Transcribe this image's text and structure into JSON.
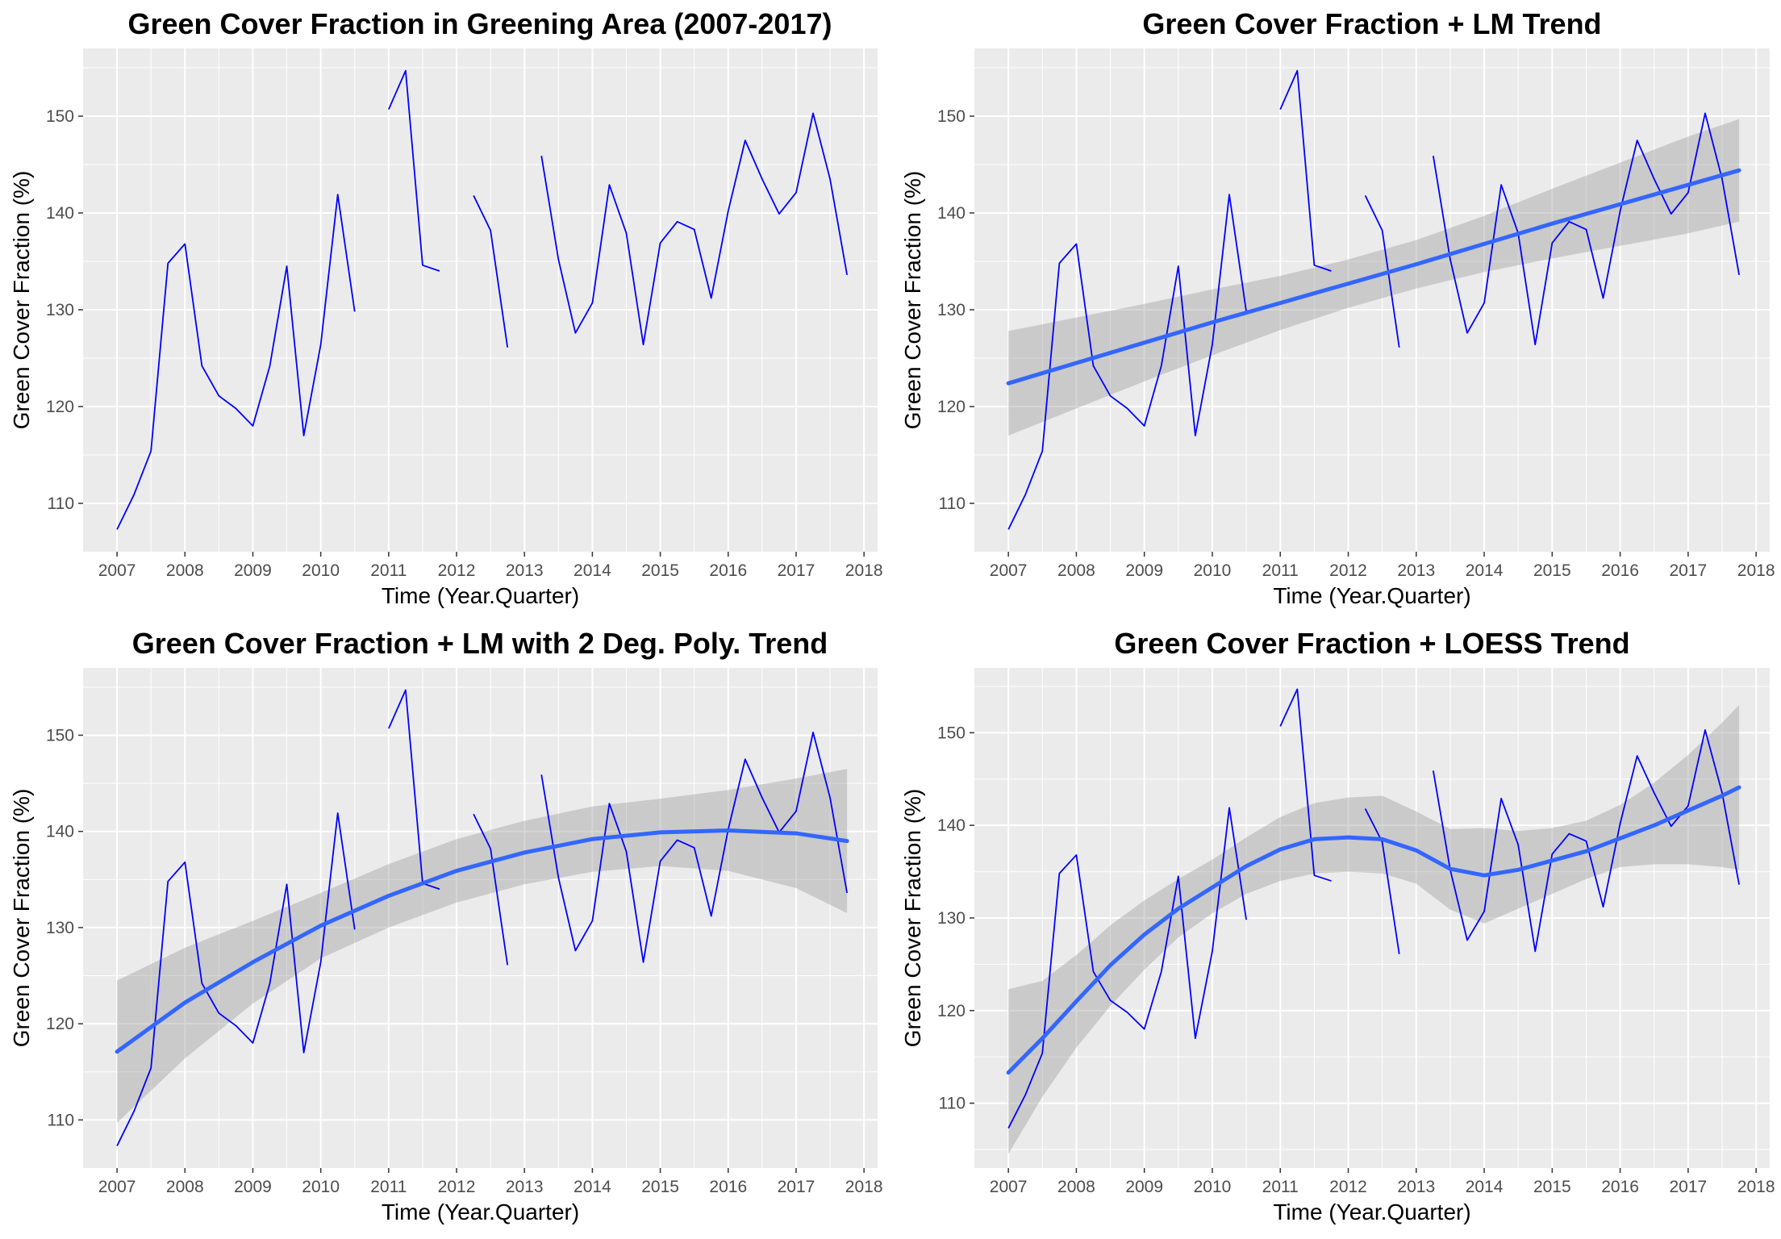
{
  "chart_data": [
    {
      "type": "line",
      "title": "Green Cover Fraction in Greening Area (2007-2017)",
      "xlabel": "Time (Year.Quarter)",
      "ylabel": "Green Cover Fraction (%)",
      "xlim": [
        2006.5,
        2018.2
      ],
      "ylim": [
        105,
        157
      ],
      "xticks": [
        2007,
        2008,
        2009,
        2010,
        2011,
        2012,
        2013,
        2014,
        2015,
        2016,
        2017,
        2018
      ],
      "yticks": [
        110,
        120,
        130,
        140,
        150
      ],
      "grid": true,
      "trend": "none",
      "series": [
        {
          "color": "#0000ff",
          "x": [
            2007.0,
            2007.25,
            2007.5,
            2007.75,
            2008.0,
            2008.25,
            2008.5,
            2008.75,
            2009.0,
            2009.25,
            2009.5,
            2009.75,
            2010.0,
            2010.25,
            2010.5,
            2010.75,
            2011.0,
            2011.25,
            2011.5,
            2011.75,
            2012.0,
            2012.25,
            2012.5,
            2012.75,
            2013.0,
            2013.25,
            2013.5,
            2013.75,
            2014.0,
            2014.25,
            2014.5,
            2014.75,
            2015.0,
            2015.25,
            2015.5,
            2015.75,
            2016.0,
            2016.25,
            2016.5,
            2016.75,
            2017.0,
            2017.25,
            2017.5,
            2017.75
          ],
          "values": [
            107.3,
            110.9,
            115.4,
            134.8,
            136.8,
            124.2,
            121.1,
            119.8,
            118.0,
            124.2,
            134.5,
            117.0,
            126.4,
            141.9,
            129.8,
            null,
            150.7,
            154.7,
            134.6,
            134.0,
            null,
            141.8,
            138.2,
            126.1,
            null,
            145.9,
            135.2,
            127.6,
            130.7,
            142.9,
            137.9,
            126.4,
            136.9,
            139.1,
            138.3,
            131.2,
            140.2,
            147.5,
            143.5,
            139.9,
            142.1,
            150.3,
            143.5,
            133.6
          ]
        }
      ]
    },
    {
      "type": "line",
      "title": "Green Cover Fraction + LM Trend",
      "xlabel": "Time (Year.Quarter)",
      "ylabel": "Green Cover Fraction (%)",
      "xlim": [
        2006.5,
        2018.2
      ],
      "ylim": [
        105,
        157
      ],
      "xticks": [
        2007,
        2008,
        2009,
        2010,
        2011,
        2012,
        2013,
        2014,
        2015,
        2016,
        2017,
        2018
      ],
      "yticks": [
        110,
        120,
        130,
        140,
        150
      ],
      "grid": true,
      "trend": "lm",
      "trend_color": "#3366ff",
      "band_color": "#999999",
      "series": [
        {
          "color": "#0000ff",
          "x": [
            2007.0,
            2007.25,
            2007.5,
            2007.75,
            2008.0,
            2008.25,
            2008.5,
            2008.75,
            2009.0,
            2009.25,
            2009.5,
            2009.75,
            2010.0,
            2010.25,
            2010.5,
            2010.75,
            2011.0,
            2011.25,
            2011.5,
            2011.75,
            2012.0,
            2012.25,
            2012.5,
            2012.75,
            2013.0,
            2013.25,
            2013.5,
            2013.75,
            2014.0,
            2014.25,
            2014.5,
            2014.75,
            2015.0,
            2015.25,
            2015.5,
            2015.75,
            2016.0,
            2016.25,
            2016.5,
            2016.75,
            2017.0,
            2017.25,
            2017.5,
            2017.75
          ],
          "values": [
            107.3,
            110.9,
            115.4,
            134.8,
            136.8,
            124.2,
            121.1,
            119.8,
            118.0,
            124.2,
            134.5,
            117.0,
            126.4,
            141.9,
            129.8,
            null,
            150.7,
            154.7,
            134.6,
            134.0,
            null,
            141.8,
            138.2,
            126.1,
            null,
            145.9,
            135.2,
            127.6,
            130.7,
            142.9,
            137.9,
            126.4,
            136.9,
            139.1,
            138.3,
            131.2,
            140.2,
            147.5,
            143.5,
            139.9,
            142.1,
            150.3,
            143.5,
            133.6
          ]
        }
      ],
      "trend_data": {
        "x": [
          2007.0,
          2008.0,
          2009.0,
          2010.0,
          2011.0,
          2012.0,
          2013.0,
          2014.0,
          2015.0,
          2016.0,
          2017.0,
          2017.75
        ],
        "fit": [
          122.4,
          124.5,
          126.6,
          128.7,
          130.7,
          132.7,
          134.7,
          136.8,
          138.9,
          140.9,
          142.9,
          144.4
        ],
        "lower": [
          117.0,
          119.8,
          122.6,
          125.3,
          127.9,
          130.2,
          132.2,
          133.9,
          135.3,
          136.6,
          137.9,
          139.1
        ],
        "upper": [
          127.8,
          129.2,
          130.6,
          132.1,
          133.5,
          135.2,
          137.2,
          139.7,
          142.5,
          145.2,
          147.9,
          149.7
        ]
      }
    },
    {
      "type": "line",
      "title": "Green Cover Fraction + LM with 2 Deg. Poly. Trend",
      "xlabel": "Time (Year.Quarter)",
      "ylabel": "Green Cover Fraction (%)",
      "xlim": [
        2006.5,
        2018.2
      ],
      "ylim": [
        105,
        157
      ],
      "xticks": [
        2007,
        2008,
        2009,
        2010,
        2011,
        2012,
        2013,
        2014,
        2015,
        2016,
        2017,
        2018
      ],
      "yticks": [
        110,
        120,
        130,
        140,
        150
      ],
      "grid": true,
      "trend": "lm-poly2",
      "trend_color": "#3366ff",
      "band_color": "#999999",
      "series": [
        {
          "color": "#0000ff",
          "x": [
            2007.0,
            2007.25,
            2007.5,
            2007.75,
            2008.0,
            2008.25,
            2008.5,
            2008.75,
            2009.0,
            2009.25,
            2009.5,
            2009.75,
            2010.0,
            2010.25,
            2010.5,
            2010.75,
            2011.0,
            2011.25,
            2011.5,
            2011.75,
            2012.0,
            2012.25,
            2012.5,
            2012.75,
            2013.0,
            2013.25,
            2013.5,
            2013.75,
            2014.0,
            2014.25,
            2014.5,
            2014.75,
            2015.0,
            2015.25,
            2015.5,
            2015.75,
            2016.0,
            2016.25,
            2016.5,
            2016.75,
            2017.0,
            2017.25,
            2017.5,
            2017.75
          ],
          "values": [
            107.3,
            110.9,
            115.4,
            134.8,
            136.8,
            124.2,
            121.1,
            119.8,
            118.0,
            124.2,
            134.5,
            117.0,
            126.4,
            141.9,
            129.8,
            null,
            150.7,
            154.7,
            134.6,
            134.0,
            null,
            141.8,
            138.2,
            126.1,
            null,
            145.9,
            135.2,
            127.6,
            130.7,
            142.9,
            137.9,
            126.4,
            136.9,
            139.1,
            138.3,
            131.2,
            140.2,
            147.5,
            143.5,
            139.9,
            142.1,
            150.3,
            143.5,
            133.6
          ]
        }
      ],
      "trend_data": {
        "x": [
          2007.0,
          2008.0,
          2009.0,
          2010.0,
          2011.0,
          2012.0,
          2013.0,
          2014.0,
          2015.0,
          2016.0,
          2017.0,
          2017.75
        ],
        "fit": [
          117.1,
          122.2,
          126.4,
          130.2,
          133.3,
          135.9,
          137.8,
          139.2,
          139.9,
          140.1,
          139.8,
          139.0
        ],
        "lower": [
          109.7,
          116.4,
          122.1,
          126.8,
          130.0,
          132.6,
          134.5,
          135.8,
          136.4,
          135.9,
          134.1,
          131.5
        ],
        "upper": [
          124.5,
          127.9,
          130.7,
          133.6,
          136.6,
          139.2,
          141.1,
          142.6,
          143.4,
          144.3,
          145.5,
          146.5
        ]
      }
    },
    {
      "type": "line",
      "title": "Green Cover Fraction + LOESS Trend",
      "xlabel": "Time (Year.Quarter)",
      "ylabel": "Green Cover Fraction (%)",
      "xlim": [
        2006.5,
        2018.2
      ],
      "ylim": [
        103,
        157
      ],
      "xticks": [
        2007,
        2008,
        2009,
        2010,
        2011,
        2012,
        2013,
        2014,
        2015,
        2016,
        2017,
        2018
      ],
      "yticks": [
        110,
        120,
        130,
        140,
        150
      ],
      "grid": true,
      "trend": "loess",
      "trend_color": "#3366ff",
      "band_color": "#999999",
      "series": [
        {
          "color": "#0000ff",
          "x": [
            2007.0,
            2007.25,
            2007.5,
            2007.75,
            2008.0,
            2008.25,
            2008.5,
            2008.75,
            2009.0,
            2009.25,
            2009.5,
            2009.75,
            2010.0,
            2010.25,
            2010.5,
            2010.75,
            2011.0,
            2011.25,
            2011.5,
            2011.75,
            2012.0,
            2012.25,
            2012.5,
            2012.75,
            2013.0,
            2013.25,
            2013.5,
            2013.75,
            2014.0,
            2014.25,
            2014.5,
            2014.75,
            2015.0,
            2015.25,
            2015.5,
            2015.75,
            2016.0,
            2016.25,
            2016.5,
            2016.75,
            2017.0,
            2017.25,
            2017.5,
            2017.75
          ],
          "values": [
            107.3,
            110.9,
            115.4,
            134.8,
            136.8,
            124.2,
            121.1,
            119.8,
            118.0,
            124.2,
            134.5,
            117.0,
            126.4,
            141.9,
            129.8,
            null,
            150.7,
            154.7,
            134.6,
            134.0,
            null,
            141.8,
            138.2,
            126.1,
            null,
            145.9,
            135.2,
            127.6,
            130.7,
            142.9,
            137.9,
            126.4,
            136.9,
            139.1,
            138.3,
            131.2,
            140.2,
            147.5,
            143.5,
            139.9,
            142.1,
            150.3,
            143.5,
            133.6
          ]
        }
      ],
      "trend_data": {
        "x": [
          2007.0,
          2007.5,
          2008.0,
          2008.5,
          2009.0,
          2009.5,
          2010.0,
          2010.5,
          2011.0,
          2011.5,
          2012.0,
          2012.5,
          2013.0,
          2013.5,
          2014.0,
          2014.5,
          2015.0,
          2015.5,
          2016.0,
          2016.5,
          2017.0,
          2017.5,
          2017.75
        ],
        "fit": [
          113.3,
          117.0,
          121.0,
          124.9,
          128.2,
          131.0,
          133.3,
          135.6,
          137.4,
          138.5,
          138.7,
          138.5,
          137.3,
          135.3,
          134.6,
          135.2,
          136.2,
          137.2,
          138.6,
          140.0,
          141.6,
          143.2,
          144.1
        ],
        "lower": [
          104.5,
          110.7,
          116.0,
          120.5,
          124.4,
          127.9,
          130.5,
          132.6,
          134.0,
          134.8,
          135.0,
          134.8,
          133.7,
          130.9,
          129.4,
          131.0,
          132.6,
          134.2,
          135.5,
          135.8,
          135.8,
          135.5,
          135.2
        ],
        "upper": [
          122.3,
          123.2,
          126.0,
          129.2,
          131.9,
          134.2,
          136.3,
          138.7,
          140.9,
          142.4,
          143.0,
          143.2,
          141.5,
          139.6,
          139.7,
          139.4,
          139.7,
          140.5,
          142.2,
          144.6,
          147.6,
          151.1,
          153.0
        ]
      }
    }
  ]
}
